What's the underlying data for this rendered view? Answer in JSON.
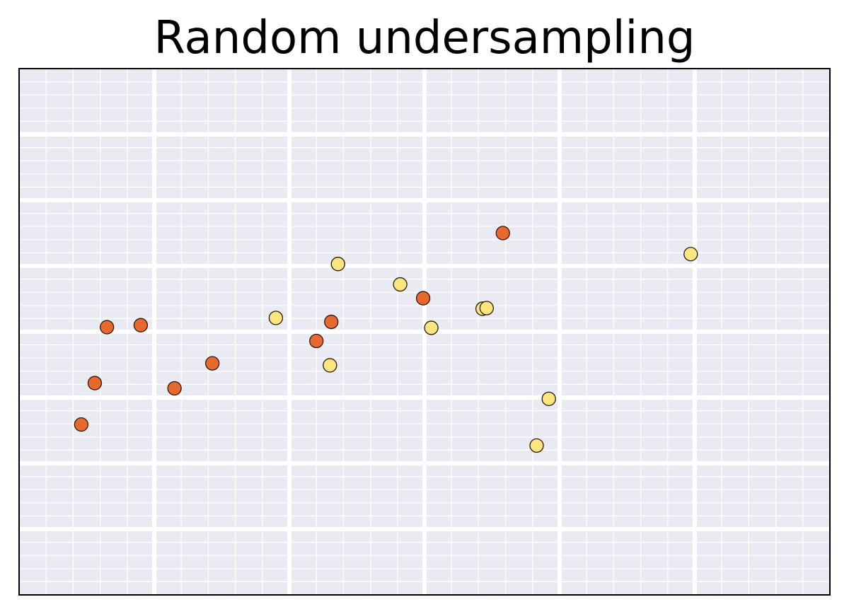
{
  "chart_data": {
    "type": "scatter",
    "title": "Random undersampling",
    "xlabel": "",
    "ylabel": "",
    "xlim": [
      0,
      6
    ],
    "ylim": [
      0,
      8
    ],
    "grid": true,
    "legend": "none",
    "style": {
      "background": "#eaeaf2",
      "major_grid": "#ffffff",
      "minor_grid": "#ffffff",
      "frame": "#000000"
    },
    "series": [
      {
        "color": "#e8692d",
        "points": [
          {
            "x": 0.46,
            "y": 2.59
          },
          {
            "x": 0.56,
            "y": 3.22
          },
          {
            "x": 0.65,
            "y": 4.07
          },
          {
            "x": 0.9,
            "y": 4.1
          },
          {
            "x": 1.15,
            "y": 3.14
          },
          {
            "x": 1.43,
            "y": 3.52
          },
          {
            "x": 2.2,
            "y": 3.86
          },
          {
            "x": 2.31,
            "y": 4.15
          },
          {
            "x": 2.99,
            "y": 4.51
          },
          {
            "x": 3.58,
            "y": 5.5
          }
        ]
      },
      {
        "color": "#fbe57f",
        "points": [
          {
            "x": 1.9,
            "y": 4.21
          },
          {
            "x": 2.3,
            "y": 3.49
          },
          {
            "x": 2.36,
            "y": 5.03
          },
          {
            "x": 2.82,
            "y": 4.72
          },
          {
            "x": 3.05,
            "y": 4.06
          },
          {
            "x": 3.43,
            "y": 4.35
          },
          {
            "x": 3.46,
            "y": 4.36
          },
          {
            "x": 3.83,
            "y": 2.27
          },
          {
            "x": 3.92,
            "y": 2.98
          },
          {
            "x": 4.97,
            "y": 5.18
          }
        ]
      }
    ]
  }
}
